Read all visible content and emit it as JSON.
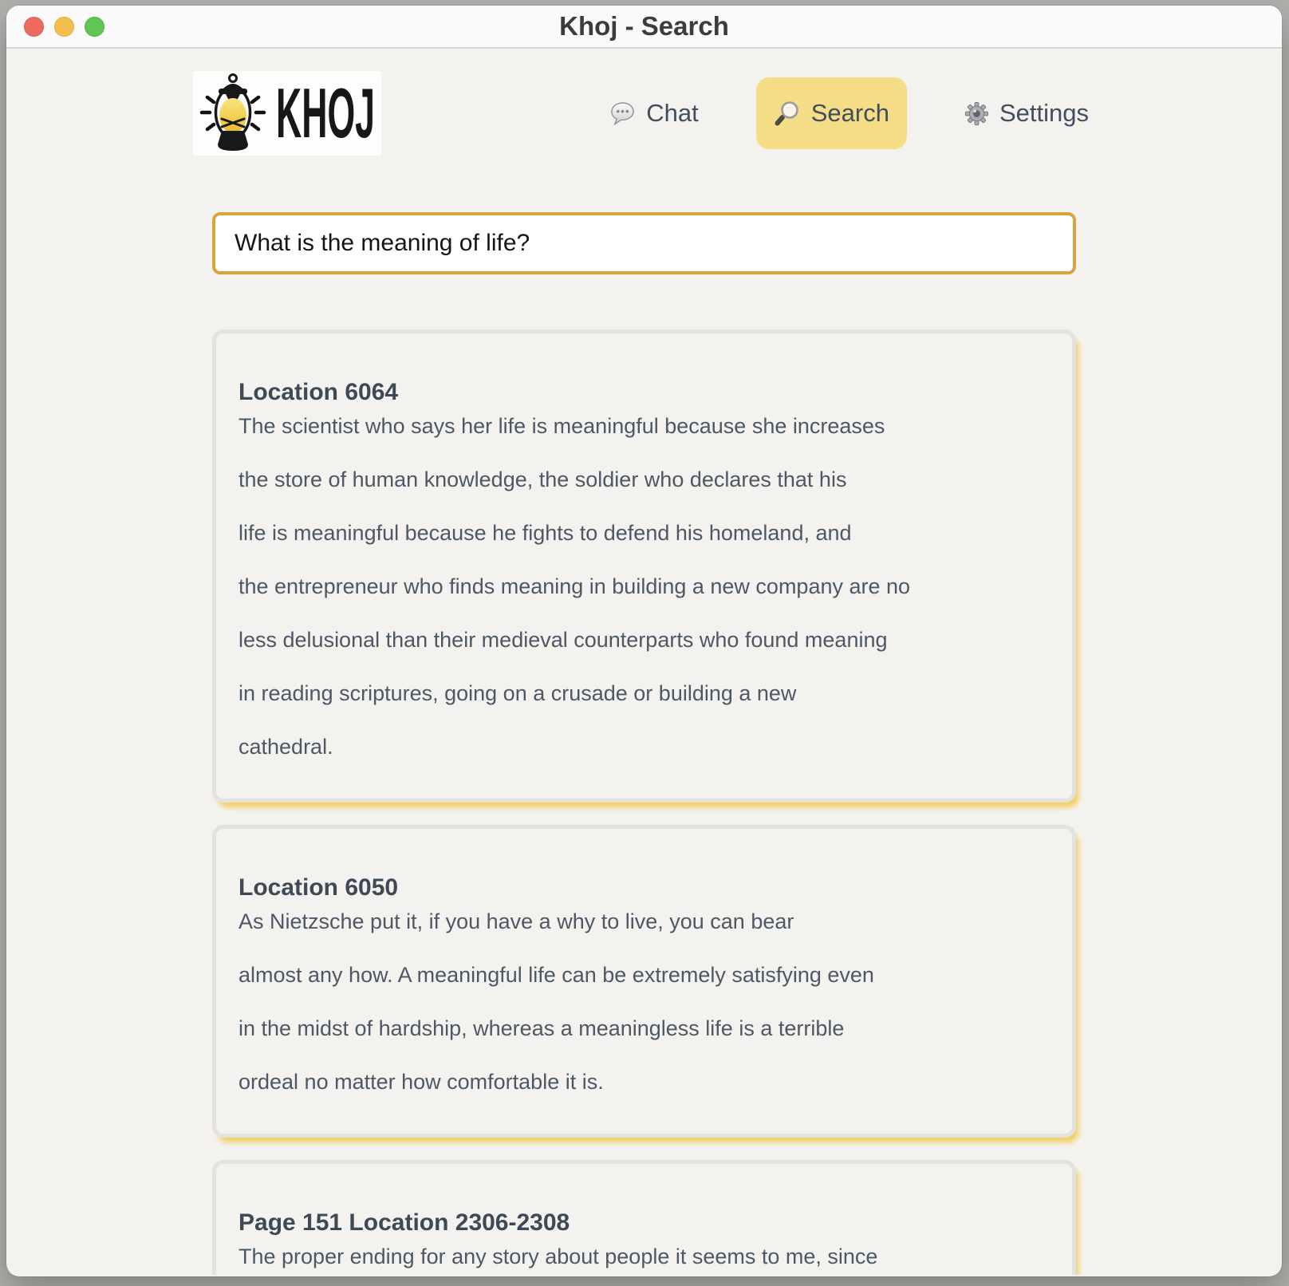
{
  "window": {
    "title": "Khoj - Search"
  },
  "header": {
    "logo_text": "KHOJ",
    "nav": [
      {
        "label": "Chat",
        "icon": "chat-bubble-icon",
        "active": false
      },
      {
        "label": "Search",
        "icon": "magnifier-icon",
        "active": true
      },
      {
        "label": "Settings",
        "icon": "gear-icon",
        "active": false
      }
    ]
  },
  "search": {
    "query": "What is the meaning of life?"
  },
  "results": [
    {
      "heading": "Location 6064",
      "lines": [
        "The scientist who says her life is meaningful because she increases",
        "the store of human knowledge, the soldier who declares that his",
        "life is meaningful because he fights to defend his homeland, and",
        "the entrepreneur who finds meaning in building a new company are no",
        "less delusional than their medieval counterparts who found meaning",
        "in reading scriptures, going on a crusade or building a new",
        "cathedral."
      ]
    },
    {
      "heading": "Location 6050",
      "lines": [
        "As Nietzsche put it, if you have a why to live, you can bear",
        "almost any how. A meaningful life can be extremely satisfying even",
        "in the midst of hardship, whereas a meaningless life is a terrible",
        "ordeal no matter how comfortable it is."
      ]
    },
    {
      "heading": "Page 151 Location 2306-2308",
      "lines": [
        "The proper ending for any story about people it seems to me, since"
      ]
    }
  ],
  "colors": {
    "accent_pill": "#f5dc86",
    "input_border": "#d9a43e",
    "card_shadow": "#f1cf62",
    "traffic_red": "#ec6a5e",
    "traffic_yellow": "#f4bf4e",
    "traffic_green": "#61c554"
  }
}
